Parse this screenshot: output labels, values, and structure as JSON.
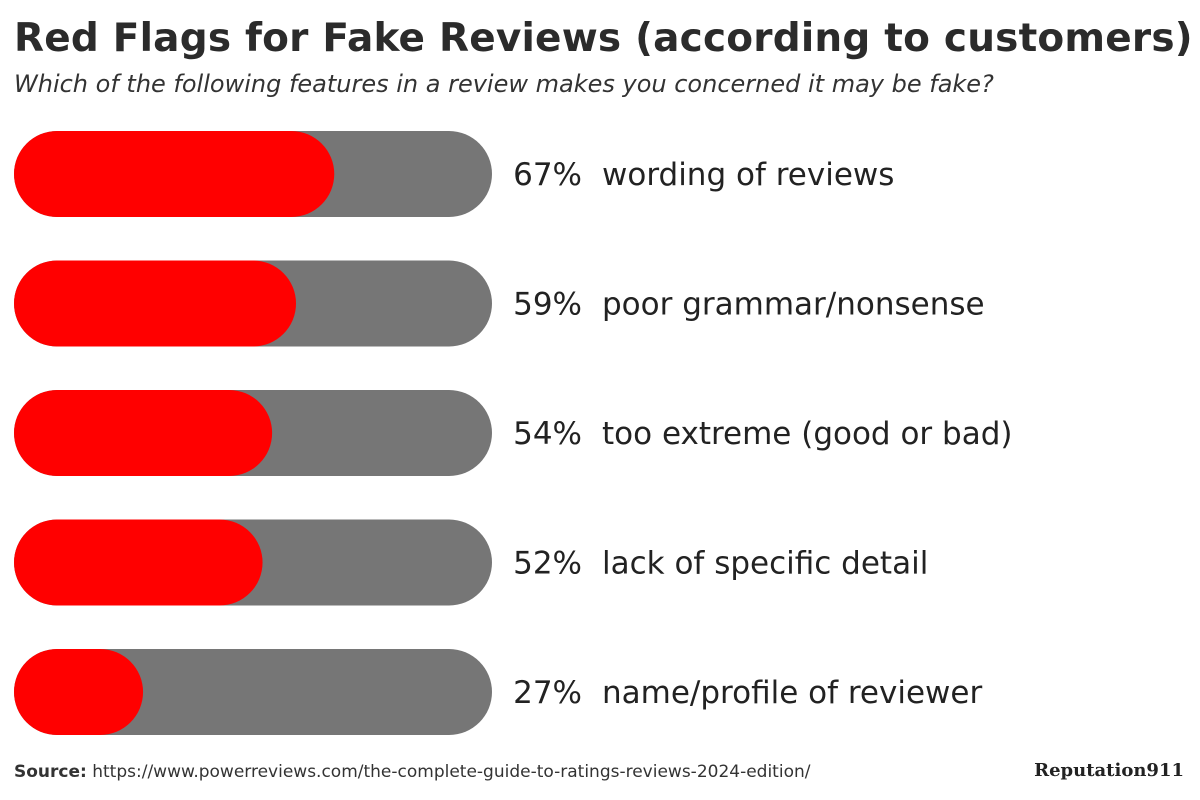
{
  "header": {
    "title": "Red Flags for Fake Reviews (according to customers)",
    "subtitle": "Which of the following features in a review makes you concerned it may be fake?"
  },
  "chart_data": {
    "type": "bar",
    "orientation": "horizontal",
    "categories": [
      "wording of reviews",
      "poor grammar/nonsense",
      "too extreme (good or bad)",
      "lack of specific detail",
      "name/profile of reviewer"
    ],
    "values": [
      67,
      59,
      54,
      52,
      27
    ],
    "value_labels": [
      "67%",
      "59%",
      "54%",
      "52%",
      "27%"
    ],
    "xlim": [
      0,
      100
    ],
    "unit": "%",
    "grid": false,
    "legend": "none",
    "colors": {
      "fill": "#ff0000",
      "track": "#767676"
    }
  },
  "footer": {
    "source_label": "Source:",
    "source_url": "https://www.powerreviews.com/the-complete-guide-to-ratings-reviews-2024-edition/",
    "brand": "Reputation911"
  }
}
